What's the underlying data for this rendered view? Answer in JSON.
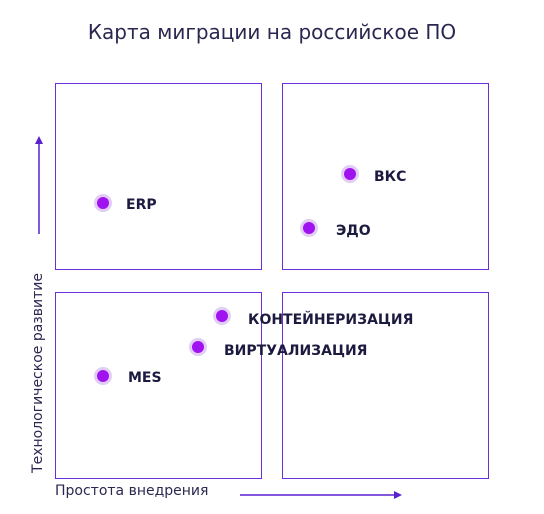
{
  "title": "Карта миграции на российское ПО",
  "axes": {
    "y_label": "Технологическое развитие",
    "x_label": "Простота внедрения"
  },
  "colors": {
    "frame": "#6a2fd6",
    "arrow": "#5a20d0",
    "point": "#a012f0",
    "point_halo": "#d6b8f2"
  },
  "items": [
    {
      "label": "ERP"
    },
    {
      "label": "ВКС"
    },
    {
      "label": "ЭДО"
    },
    {
      "label": "КОНТЕЙНЕРИЗАЦИЯ"
    },
    {
      "label": "ВИРТУАЛИЗАЦИЯ"
    },
    {
      "label": "MES"
    }
  ]
}
